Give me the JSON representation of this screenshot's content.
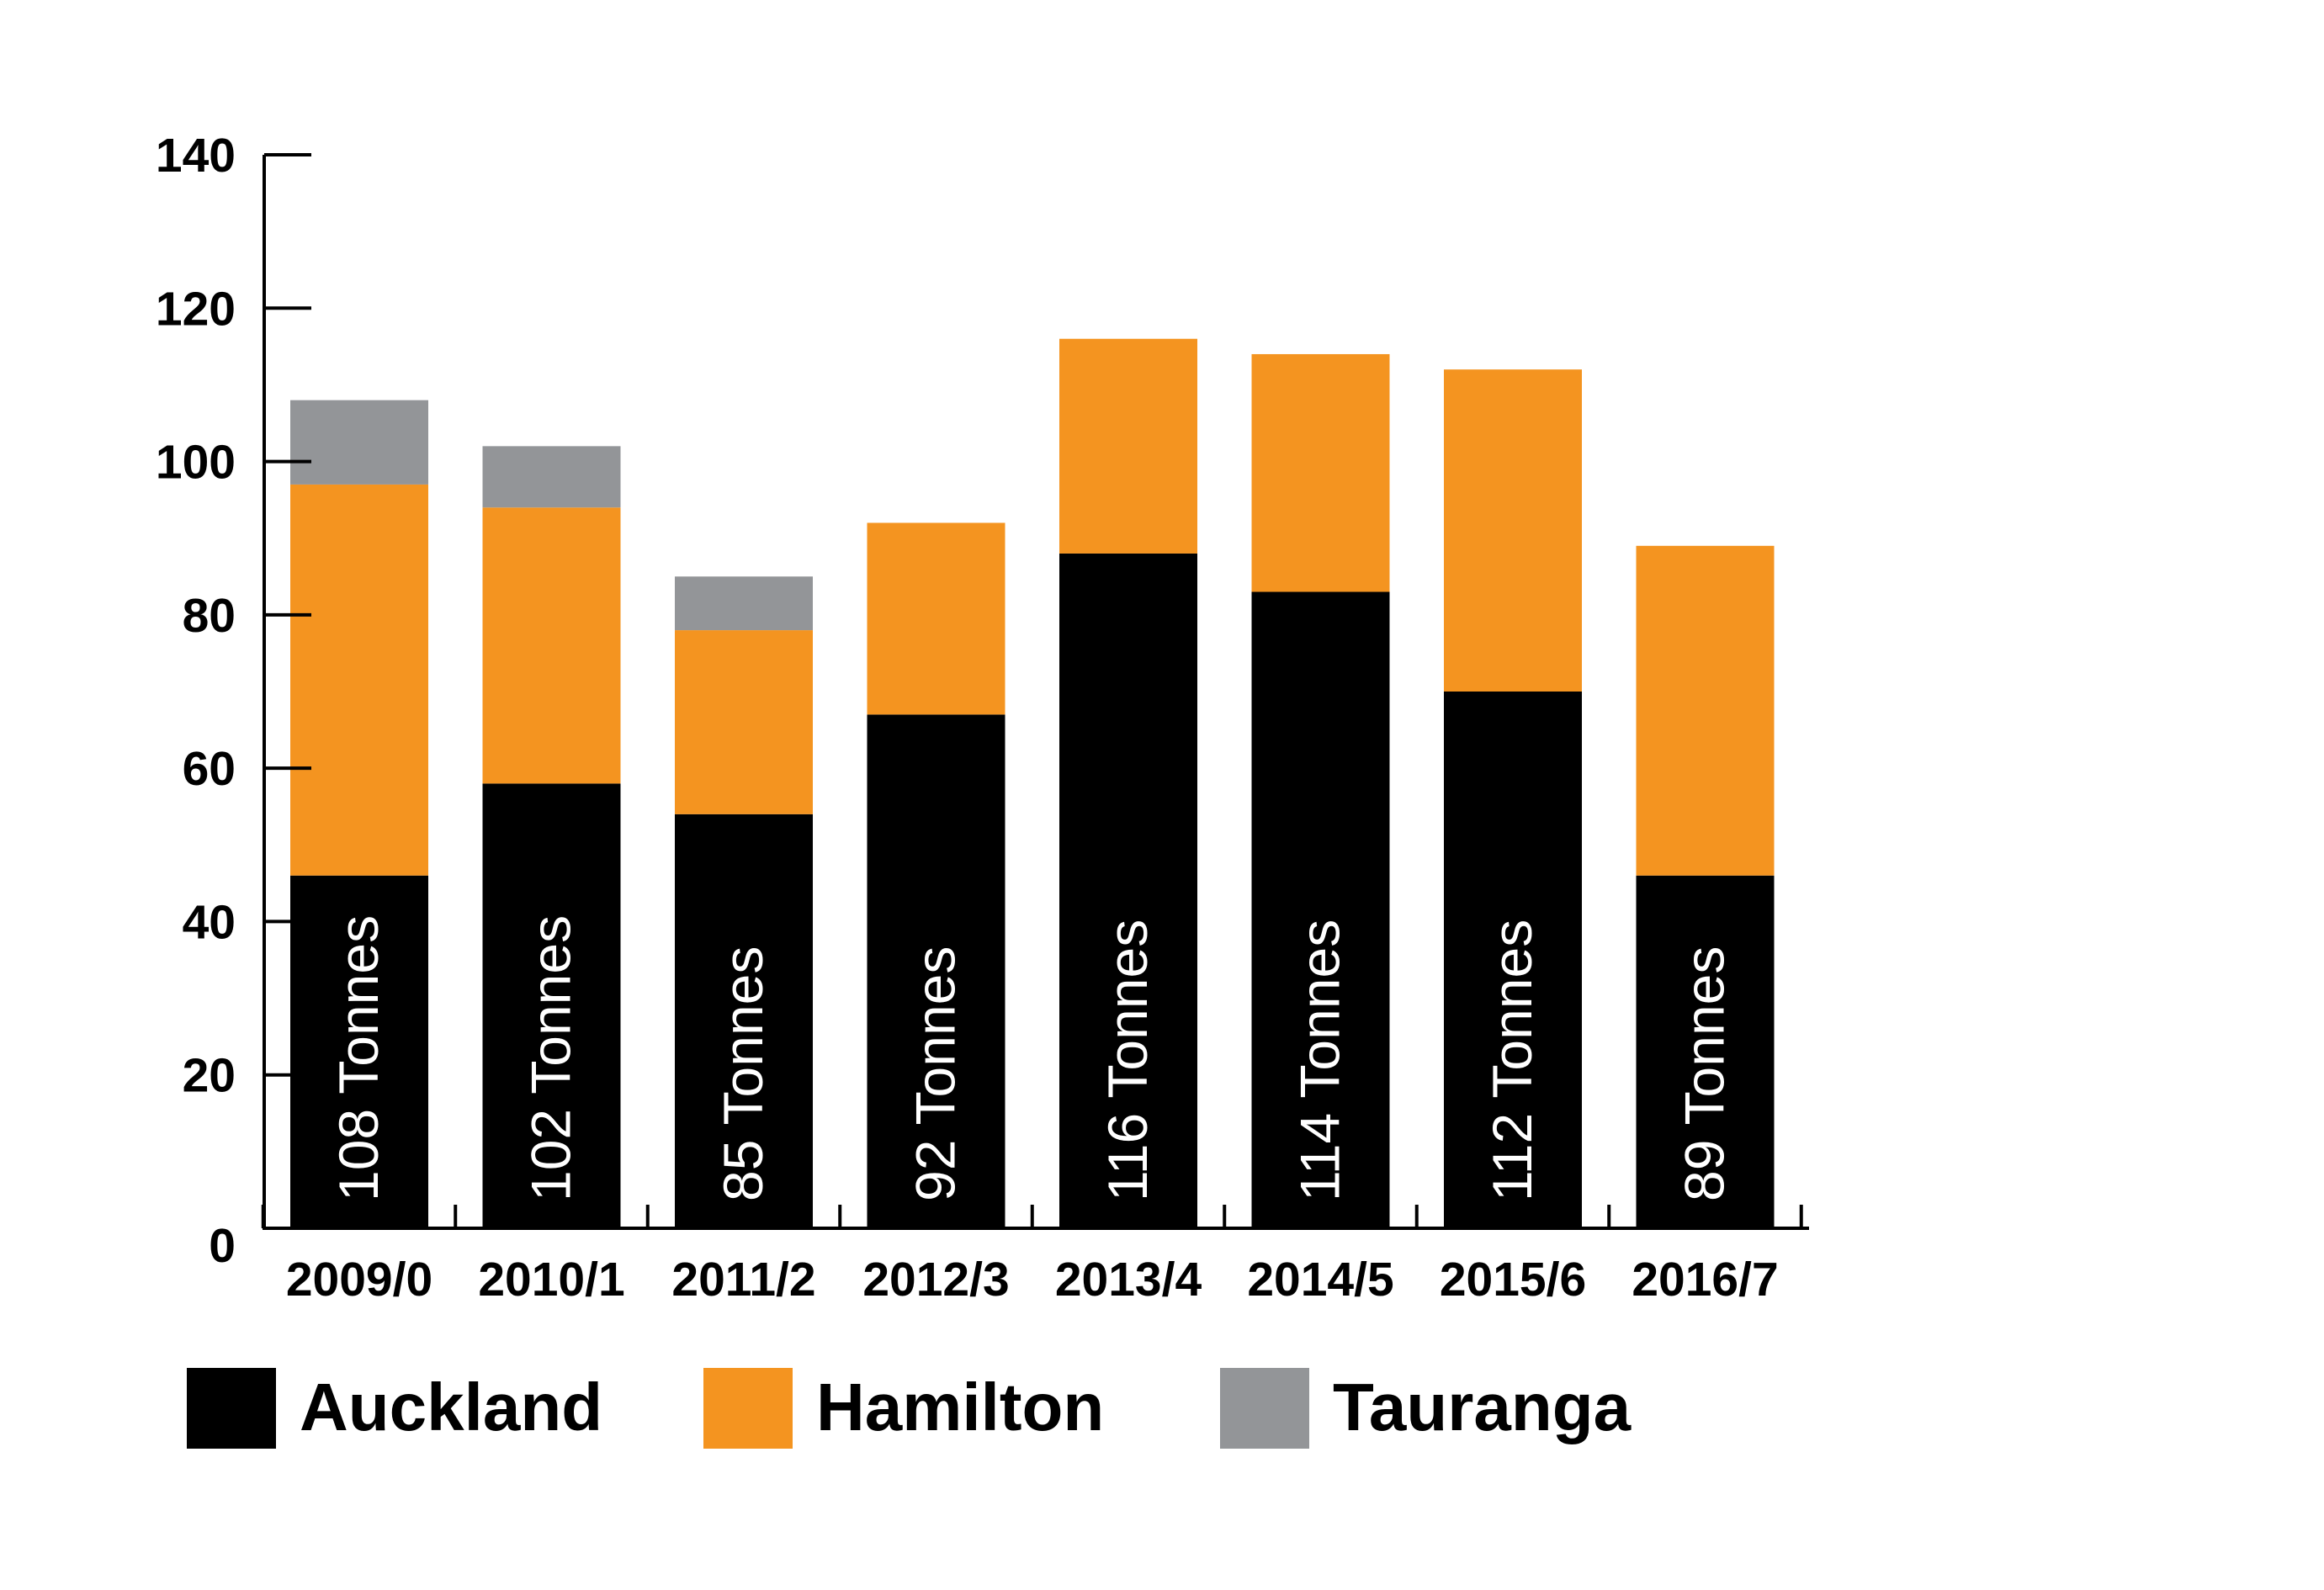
{
  "chart_data": {
    "type": "bar",
    "stacked": true,
    "title": "",
    "xlabel": "",
    "ylabel": "",
    "ylim": [
      0,
      140
    ],
    "yticks": [
      0,
      20,
      40,
      60,
      80,
      100,
      120,
      140
    ],
    "categories": [
      "2009/0",
      "2010/1",
      "2011/2",
      "2012/3",
      "2013/4",
      "2014/5",
      "2015/6",
      "2016/7"
    ],
    "series": [
      {
        "name": "Auckland",
        "color": "#000000",
        "values": [
          46,
          58,
          54,
          67,
          88,
          83,
          70,
          46
        ]
      },
      {
        "name": "Hamilton",
        "color": "#f49420",
        "values": [
          51,
          36,
          24,
          25,
          28,
          31,
          42,
          43
        ]
      },
      {
        "name": "Tauranga",
        "color": "#939598",
        "values": [
          11,
          8,
          7,
          0,
          0,
          0,
          0,
          0
        ]
      }
    ],
    "bar_labels": [
      "108 Tonnes",
      "102 Tonnes",
      "85 Tonnes",
      "92 Tonnes",
      "116 Tonnes",
      "114 Tonnes",
      "112 Tonnes",
      "89 Tonnes"
    ],
    "grid": false,
    "legend_position": "bottom-left"
  }
}
